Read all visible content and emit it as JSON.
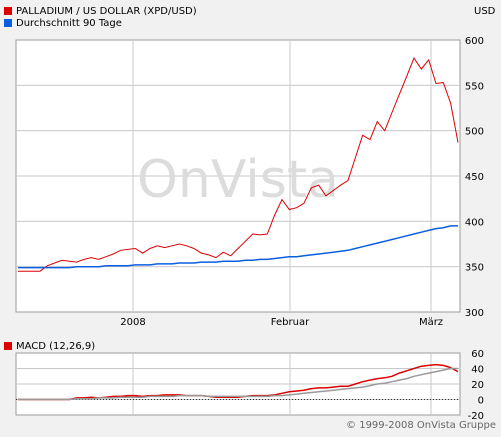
{
  "header": {
    "legend_main": "PALLADIUM / US DOLLAR (XPD/USD)",
    "legend_avg": "Durchschnitt 90 Tage",
    "currency": "USD"
  },
  "watermark": "OnVista",
  "copyright": "© 1999-2008 OnVista Gruppe",
  "colors": {
    "price": "#dd0000",
    "average": "#0a5fe0",
    "macd": "#dd0000",
    "signal": "#999999",
    "grid": "#c8c8c8",
    "plot_bg": "#ffffff"
  },
  "chart_data": [
    {
      "id": "price",
      "type": "line",
      "x_labels": [
        "2008",
        "Februar",
        "März"
      ],
      "ylim": [
        300,
        600
      ],
      "y_ticks": [
        300,
        350,
        400,
        450,
        500,
        550,
        600
      ],
      "grid": true,
      "series": [
        {
          "name": "PALLADIUM / US DOLLAR (XPD/USD)",
          "values": [
            345,
            345,
            345,
            345,
            351,
            354,
            357,
            356,
            355,
            358,
            360,
            358,
            361,
            364,
            368,
            369,
            370,
            365,
            370,
            373,
            371,
            373,
            375,
            373,
            370,
            365,
            363,
            360,
            366,
            362,
            370,
            378,
            386,
            385,
            386,
            407,
            424,
            413,
            415,
            420,
            437,
            440,
            428,
            434,
            440,
            445,
            470,
            495,
            490,
            510,
            500,
            520,
            540,
            560,
            580,
            568,
            578,
            552,
            553,
            530,
            487
          ]
        },
        {
          "name": "Durchschnitt 90 Tage",
          "values": [
            349,
            349,
            349,
            349,
            349,
            349,
            349,
            349,
            350,
            350,
            350,
            350,
            351,
            351,
            351,
            351,
            352,
            352,
            352,
            353,
            353,
            353,
            354,
            354,
            354,
            355,
            355,
            355,
            356,
            356,
            356,
            357,
            357,
            358,
            358,
            359,
            360,
            361,
            361,
            362,
            363,
            364,
            365,
            366,
            367,
            368,
            370,
            372,
            374,
            376,
            378,
            380,
            382,
            384,
            386,
            388,
            390,
            392,
            393,
            395,
            395
          ]
        }
      ]
    },
    {
      "id": "macd",
      "type": "line",
      "title": "MACD (12,26,9)",
      "ylim": [
        -20,
        60
      ],
      "y_ticks": [
        -20,
        0,
        20,
        40,
        60
      ],
      "grid": true,
      "series": [
        {
          "name": "MACD (12,26,9)",
          "values": [
            0,
            0,
            0,
            0,
            0,
            0,
            0,
            0,
            2,
            2,
            3,
            2,
            3,
            4,
            4,
            5,
            5,
            4,
            5,
            5,
            6,
            6,
            6,
            5,
            5,
            5,
            4,
            3,
            3,
            3,
            3,
            4,
            5,
            5,
            5,
            6,
            8,
            10,
            11,
            12,
            14,
            15,
            15,
            16,
            17,
            17,
            20,
            23,
            25,
            27,
            28,
            30,
            34,
            37,
            40,
            43,
            44,
            45,
            44,
            41,
            36
          ]
        },
        {
          "name": "Signal",
          "values": [
            0,
            0,
            0,
            0,
            0,
            0,
            0,
            0,
            1,
            1,
            1,
            2,
            2,
            2,
            3,
            3,
            3,
            3,
            4,
            4,
            4,
            4,
            5,
            5,
            5,
            5,
            4,
            4,
            4,
            4,
            4,
            4,
            4,
            4,
            4,
            5,
            5,
            6,
            7,
            8,
            9,
            10,
            11,
            12,
            13,
            14,
            15,
            16,
            18,
            20,
            21,
            23,
            25,
            27,
            30,
            32,
            34,
            36,
            38,
            40,
            40
          ]
        }
      ]
    }
  ]
}
